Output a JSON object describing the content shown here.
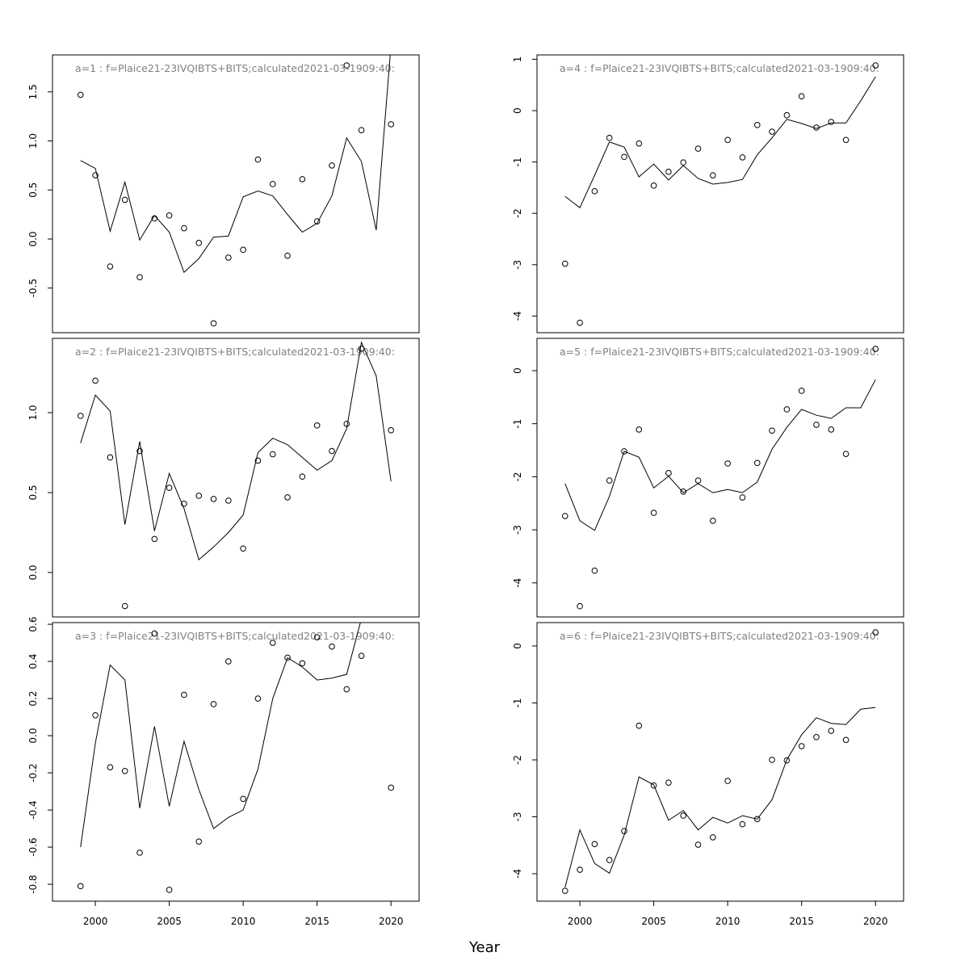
{
  "chart_data": [
    {
      "type": "line",
      "title": "a=1  :  f=Plaice21-23IVQIBTS+BITS;calculated2021-03-1909:40:",
      "xlim": [
        1997.1,
        2021.9
      ],
      "ylim": [
        -0.955,
        1.877
      ],
      "yticks": [
        "-0.5",
        "0.0",
        "0.5",
        "1.0",
        "1.5"
      ],
      "xticks": [],
      "series": [
        {
          "style": "points",
          "x": [
            1999,
            2000,
            2001,
            2002,
            2003,
            2004,
            2005,
            2006,
            2007,
            2008,
            2009,
            2010,
            2011,
            2012,
            2013,
            2014,
            2015,
            2016,
            2017,
            2018,
            2020
          ],
          "y": [
            1.47,
            0.65,
            -0.28,
            0.4,
            -0.39,
            0.21,
            0.24,
            0.11,
            -0.04,
            -0.86,
            -0.19,
            -0.11,
            0.81,
            0.56,
            -0.17,
            0.61,
            0.18,
            0.75,
            1.77,
            1.11,
            1.17
          ]
        },
        {
          "style": "line",
          "x": [
            1999,
            2000,
            2001,
            2002,
            2003,
            2004,
            2005,
            2006,
            2007,
            2008,
            2009,
            2010,
            2011,
            2012,
            2013,
            2014,
            2015,
            2016,
            2017,
            2018,
            2019,
            2020
          ],
          "y": [
            0.8,
            0.72,
            0.08,
            0.58,
            -0.01,
            0.24,
            0.07,
            -0.34,
            -0.2,
            0.02,
            0.03,
            0.43,
            0.49,
            0.44,
            0.25,
            0.07,
            0.16,
            0.44,
            1.03,
            0.79,
            0.09,
            1.98
          ]
        }
      ]
    },
    {
      "type": "line",
      "title": "a=2  :  f=Plaice21-23IVQIBTS+BITS;calculated2021-03-1909:40:",
      "xlim": [
        1997.1,
        2021.9
      ],
      "ylim": [
        -0.278,
        1.465
      ],
      "yticks": [
        "0.0",
        "0.5",
        "1.0"
      ],
      "xticks": [],
      "series": [
        {
          "style": "points",
          "x": [
            1999,
            2000,
            2001,
            2002,
            2003,
            2004,
            2005,
            2006,
            2007,
            2008,
            2009,
            2010,
            2011,
            2012,
            2013,
            2014,
            2015,
            2016,
            2017,
            2018,
            2020
          ],
          "y": [
            0.98,
            1.2,
            0.72,
            -0.21,
            0.76,
            0.21,
            0.53,
            0.43,
            0.48,
            0.46,
            0.45,
            0.15,
            0.7,
            0.74,
            0.47,
            0.6,
            0.92,
            0.76,
            0.93,
            1.4,
            0.89
          ]
        },
        {
          "style": "line",
          "x": [
            1999,
            2000,
            2001,
            2002,
            2003,
            2004,
            2005,
            2006,
            2007,
            2008,
            2009,
            2010,
            2011,
            2012,
            2013,
            2014,
            2015,
            2016,
            2017,
            2018,
            2019,
            2020
          ],
          "y": [
            0.81,
            1.11,
            1.01,
            0.3,
            0.82,
            0.26,
            0.62,
            0.4,
            0.08,
            0.16,
            0.25,
            0.36,
            0.75,
            0.84,
            0.8,
            0.72,
            0.64,
            0.7,
            0.9,
            1.44,
            1.23,
            0.57
          ]
        }
      ]
    },
    {
      "type": "line",
      "title": "a=3  :  f=Plaice21-23IVQIBTS+BITS;calculated2021-03-1909:40:",
      "xlim": [
        1997.1,
        2021.9
      ],
      "ylim": [
        -0.891,
        0.609
      ],
      "yticks": [
        "-0.8",
        "-0.6",
        "-0.4",
        "-0.2",
        "0.0",
        "0.2",
        "0.4",
        "0.6"
      ],
      "xticks": [
        "2000",
        "2005",
        "2010",
        "2015",
        "2020"
      ],
      "series": [
        {
          "style": "points",
          "x": [
            1999,
            2000,
            2001,
            2002,
            2003,
            2004,
            2005,
            2006,
            2007,
            2008,
            2009,
            2010,
            2011,
            2012,
            2013,
            2014,
            2015,
            2016,
            2017,
            2018,
            2020
          ],
          "y": [
            -0.81,
            0.11,
            -0.17,
            -0.19,
            -0.63,
            0.55,
            -0.83,
            0.22,
            -0.57,
            0.17,
            0.4,
            -0.34,
            0.2,
            0.5,
            0.42,
            0.39,
            0.53,
            0.48,
            0.25,
            0.43,
            -0.28
          ]
        },
        {
          "style": "line",
          "x": [
            1999,
            2000,
            2001,
            2002,
            2003,
            2004,
            2005,
            2006,
            2007,
            2008,
            2009,
            2010,
            2011,
            2012,
            2013,
            2014,
            2015,
            2016,
            2017,
            2018
          ],
          "y": [
            -0.6,
            -0.04,
            0.38,
            0.3,
            -0.39,
            0.05,
            -0.38,
            -0.03,
            -0.29,
            -0.5,
            -0.44,
            -0.4,
            -0.18,
            0.2,
            0.42,
            0.37,
            0.3,
            0.31,
            0.33,
            0.63
          ]
        }
      ]
    },
    {
      "type": "line",
      "title": "a=4  :  f=Plaice21-23IVQIBTS+BITS;calculated2021-03-1909:40:",
      "xlim": [
        1997.1,
        2021.9
      ],
      "ylim": [
        -4.324,
        1.085
      ],
      "yticks": [
        "-4",
        "-3",
        "-2",
        "-1",
        "0",
        "1"
      ],
      "xticks": [],
      "series": [
        {
          "style": "points",
          "x": [
            1999,
            2000,
            2001,
            2002,
            2003,
            2004,
            2005,
            2006,
            2007,
            2008,
            2009,
            2010,
            2011,
            2012,
            2013,
            2014,
            2015,
            2016,
            2017,
            2018,
            2020
          ],
          "y": [
            -2.98,
            -4.13,
            -1.57,
            -0.53,
            -0.9,
            -0.64,
            -1.46,
            -1.19,
            -1.01,
            -0.74,
            -1.26,
            -0.57,
            -0.91,
            -0.28,
            -0.41,
            -0.09,
            0.28,
            -0.33,
            -0.22,
            -0.57,
            0.88
          ]
        },
        {
          "style": "line",
          "x": [
            1999,
            2000,
            2001,
            2002,
            2003,
            2004,
            2005,
            2006,
            2007,
            2008,
            2009,
            2010,
            2011,
            2012,
            2013,
            2014,
            2015,
            2016,
            2017,
            2018,
            2019,
            2020
          ],
          "y": [
            -1.67,
            -1.89,
            -1.26,
            -0.61,
            -0.71,
            -1.29,
            -1.04,
            -1.35,
            -1.07,
            -1.32,
            -1.43,
            -1.4,
            -1.34,
            -0.86,
            -0.53,
            -0.17,
            -0.25,
            -0.35,
            -0.24,
            -0.24,
            0.19,
            0.66
          ]
        }
      ]
    },
    {
      "type": "line",
      "title": "a=5  :  f=Plaice21-23IVQIBTS+BITS;calculated2021-03-1909:40:",
      "xlim": [
        1997.1,
        2021.9
      ],
      "ylim": [
        -4.642,
        0.609
      ],
      "yticks": [
        "-4",
        "-3",
        "-2",
        "-1",
        "0"
      ],
      "xticks": [],
      "series": [
        {
          "style": "points",
          "x": [
            1999,
            2000,
            2001,
            2002,
            2003,
            2004,
            2005,
            2006,
            2007,
            2008,
            2009,
            2010,
            2011,
            2012,
            2013,
            2014,
            2015,
            2016,
            2017,
            2018,
            2020
          ],
          "y": [
            -2.74,
            -4.44,
            -3.77,
            -2.07,
            -1.52,
            -1.11,
            -2.68,
            -1.93,
            -2.28,
            -2.07,
            -2.83,
            -1.75,
            -2.39,
            -1.74,
            -1.13,
            -0.73,
            -0.38,
            -1.02,
            -1.11,
            -1.57,
            0.41
          ]
        },
        {
          "style": "line",
          "x": [
            1999,
            2000,
            2001,
            2002,
            2003,
            2004,
            2005,
            2006,
            2007,
            2008,
            2009,
            2010,
            2011,
            2012,
            2013,
            2014,
            2015,
            2016,
            2017,
            2018,
            2019,
            2020
          ],
          "y": [
            -2.13,
            -2.83,
            -3.01,
            -2.37,
            -1.52,
            -1.63,
            -2.21,
            -1.99,
            -2.3,
            -2.13,
            -2.3,
            -2.24,
            -2.3,
            -2.1,
            -1.48,
            -1.07,
            -0.73,
            -0.84,
            -0.9,
            -0.7,
            -0.7,
            -0.17
          ]
        }
      ]
    },
    {
      "type": "line",
      "title": "a=6  :  f=Plaice21-23IVQIBTS+BITS;calculated2021-03-1909:40:",
      "xlim": [
        1997.1,
        2021.9
      ],
      "ylim": [
        -4.482,
        0.411
      ],
      "yticks": [
        "-4",
        "-3",
        "-2",
        "-1",
        "0"
      ],
      "xticks": [
        "2000",
        "2005",
        "2010",
        "2015",
        "2020"
      ],
      "series": [
        {
          "style": "points",
          "x": [
            1999,
            2000,
            2001,
            2002,
            2003,
            2004,
            2005,
            2006,
            2007,
            2008,
            2009,
            2010,
            2011,
            2012,
            2013,
            2014,
            2015,
            2016,
            2017,
            2018,
            2020
          ],
          "y": [
            -4.3,
            -3.93,
            -3.48,
            -3.76,
            -3.25,
            -1.4,
            -2.45,
            -2.4,
            -2.98,
            -3.49,
            -3.36,
            -2.37,
            -3.13,
            -3.04,
            -2.0,
            -2.01,
            -1.76,
            -1.6,
            -1.49,
            -1.65,
            0.24
          ]
        },
        {
          "style": "line",
          "x": [
            1999,
            2000,
            2001,
            2002,
            2003,
            2004,
            2005,
            2006,
            2007,
            2008,
            2009,
            2010,
            2011,
            2012,
            2013,
            2014,
            2015,
            2016,
            2017,
            2018,
            2019,
            2020
          ],
          "y": [
            -4.24,
            -3.23,
            -3.82,
            -3.99,
            -3.32,
            -2.3,
            -2.44,
            -3.06,
            -2.89,
            -3.23,
            -3.01,
            -3.11,
            -2.98,
            -3.04,
            -2.7,
            -2.0,
            -1.56,
            -1.26,
            -1.36,
            -1.38,
            -1.11,
            -1.08
          ]
        }
      ]
    }
  ],
  "xlabel": "Year",
  "colors": {
    "line": "#000000",
    "points": "#000000",
    "title": "#808080"
  }
}
